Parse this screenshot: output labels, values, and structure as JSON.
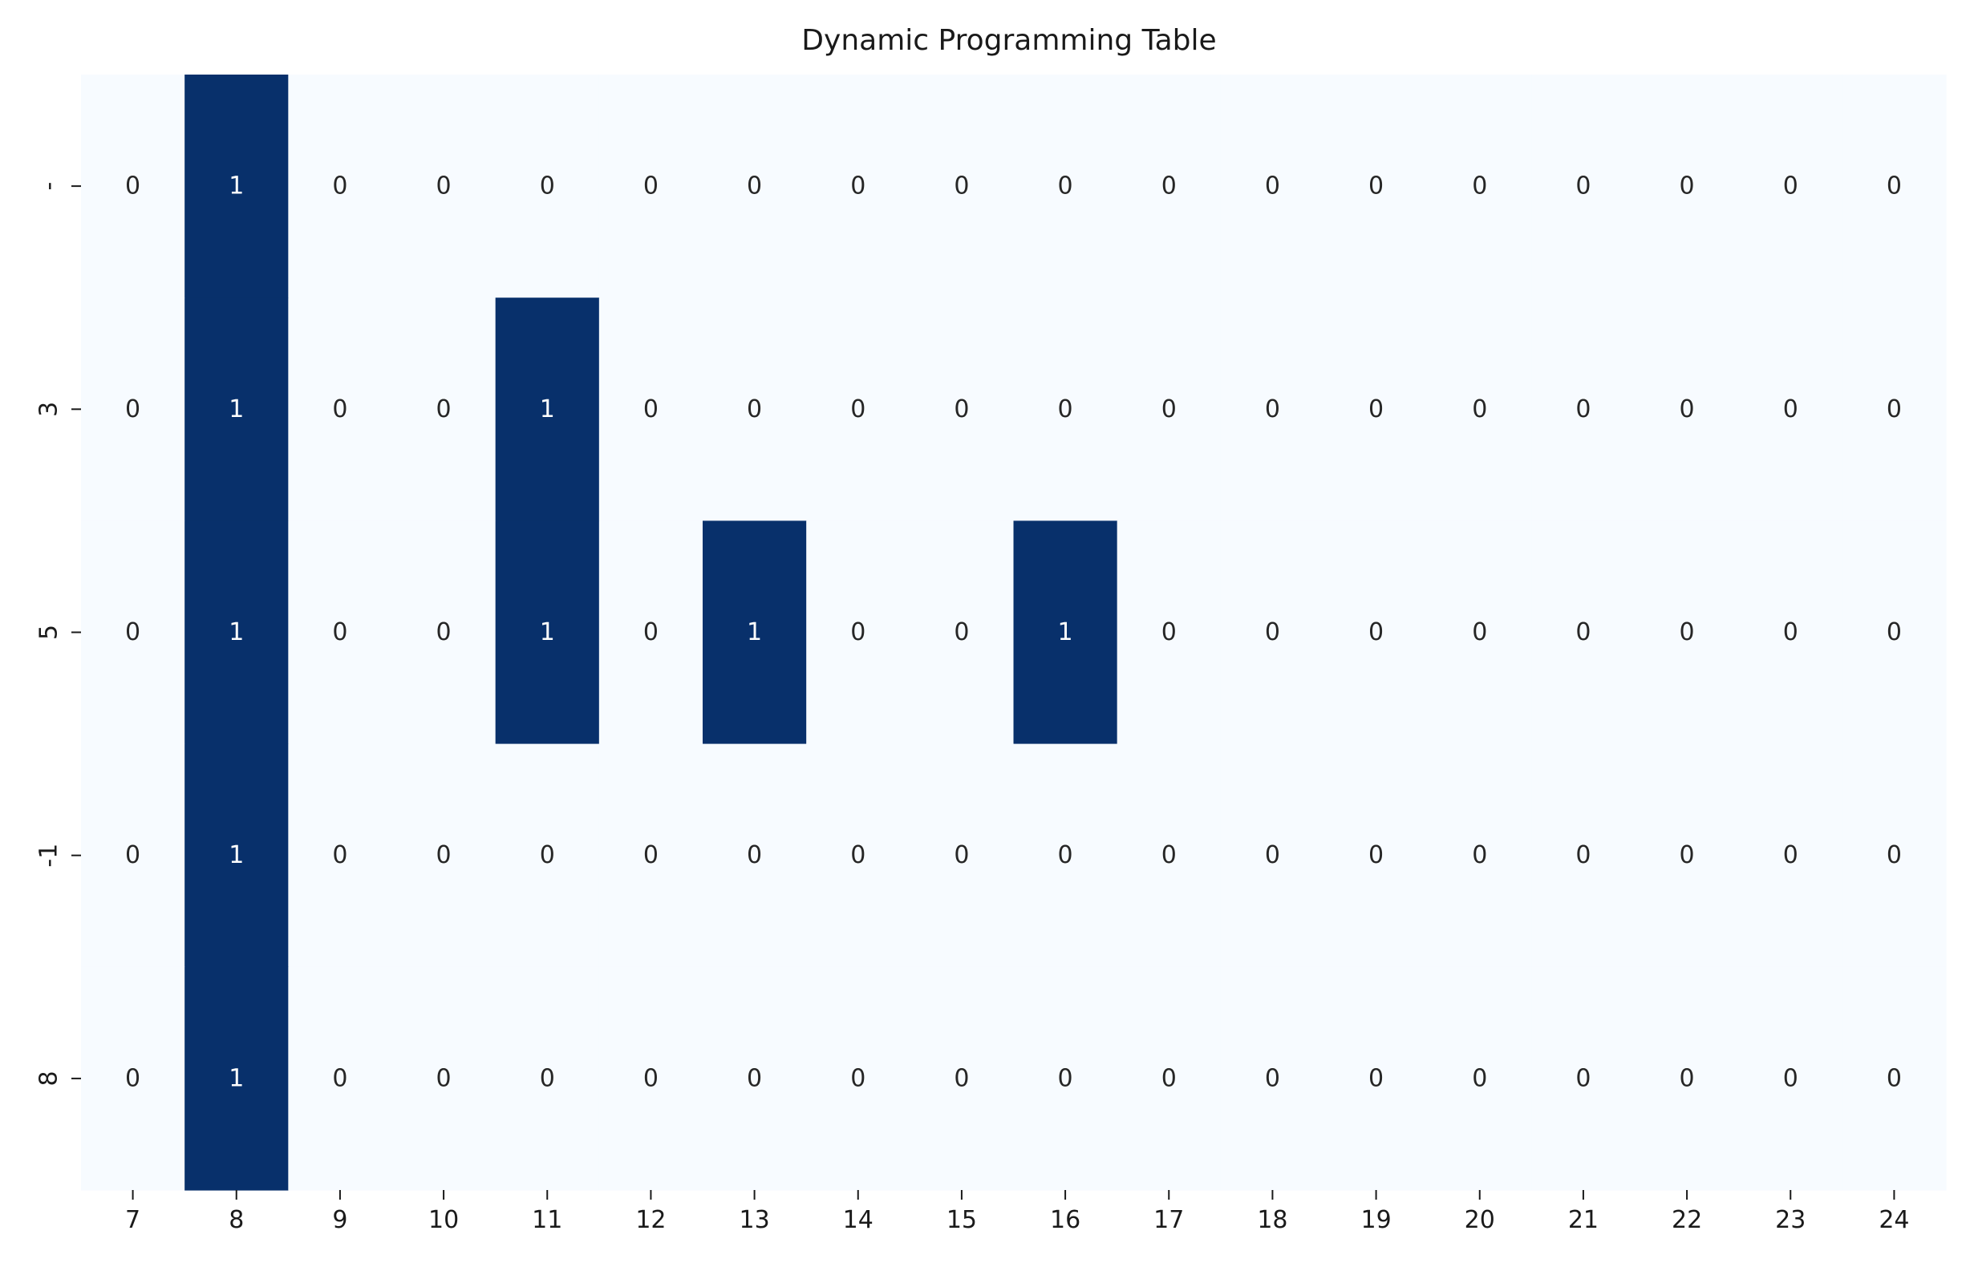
{
  "chart_data": {
    "type": "heatmap",
    "title": "Dynamic Programming Table",
    "xlabel": "",
    "ylabel": "",
    "x_labels": [
      "7",
      "8",
      "9",
      "10",
      "11",
      "12",
      "13",
      "14",
      "15",
      "16",
      "17",
      "18",
      "19",
      "20",
      "21",
      "22",
      "23",
      "24"
    ],
    "y_labels": [
      "-",
      "3",
      "5",
      "-1",
      "8"
    ],
    "values": [
      [
        0,
        1,
        0,
        0,
        0,
        0,
        0,
        0,
        0,
        0,
        0,
        0,
        0,
        0,
        0,
        0,
        0,
        0
      ],
      [
        0,
        1,
        0,
        0,
        1,
        0,
        0,
        0,
        0,
        0,
        0,
        0,
        0,
        0,
        0,
        0,
        0,
        0
      ],
      [
        0,
        1,
        0,
        0,
        1,
        0,
        1,
        0,
        0,
        1,
        0,
        0,
        0,
        0,
        0,
        0,
        0,
        0
      ],
      [
        0,
        1,
        0,
        0,
        0,
        0,
        0,
        0,
        0,
        0,
        0,
        0,
        0,
        0,
        0,
        0,
        0,
        0
      ],
      [
        0,
        1,
        0,
        0,
        0,
        0,
        0,
        0,
        0,
        0,
        0,
        0,
        0,
        0,
        0,
        0,
        0,
        0
      ]
    ],
    "value_range": [
      0,
      1
    ],
    "annotations": true,
    "colorbar": false,
    "colors": {
      "low": "#f7fbff",
      "high": "#08306b",
      "text_on_low": "#262626",
      "text_on_high": "#ffffff"
    }
  }
}
